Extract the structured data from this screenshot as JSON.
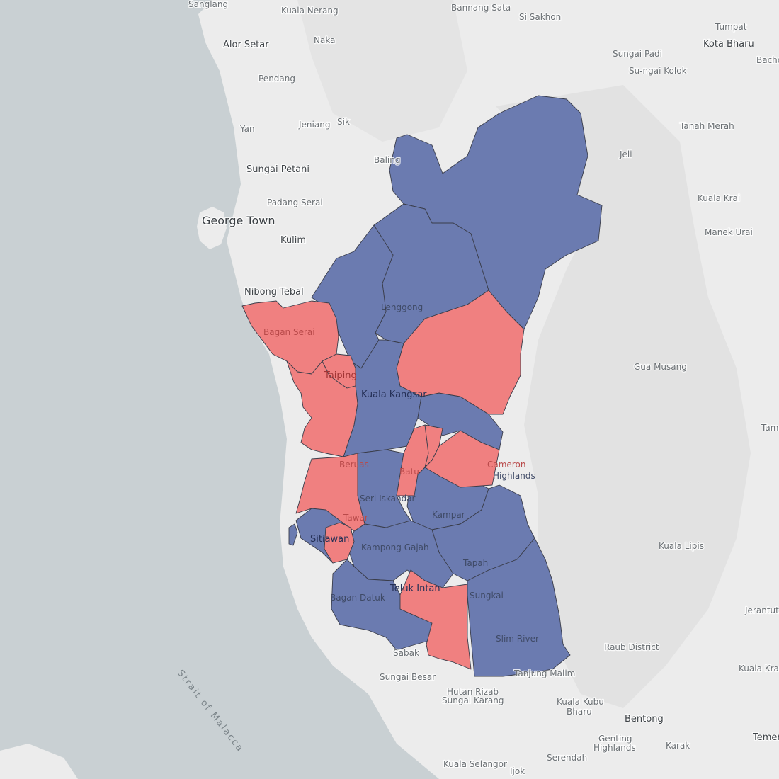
{
  "map": {
    "colors": {
      "sea": "#c9d0d3",
      "land": "#ececec",
      "terrain": "#dcdcdc",
      "blue": "#6b7bb0",
      "red": "#f08080",
      "border": "#3a3d4a"
    },
    "sea_label": "Strait of Malacca",
    "place_labels": {
      "sanglang": "Sanglang",
      "kuala_nerang": "Kuala Nerang",
      "bannang_sata": "Bannang Sata",
      "si_sakhon": "Si Sakhon",
      "tumpat": "Tumpat",
      "kota_bharu": "Kota Bharu",
      "bacho": "Bacho",
      "alor_setar": "Alor Setar",
      "naka": "Naka",
      "sungai_padi": "Sungai Padi",
      "su_ngai_kolok": "Su-ngai Kolok",
      "pendang": "Pendang",
      "yan": "Yan",
      "jeniang": "Jeniang",
      "sik": "Sik",
      "tanah_merah": "Tanah Merah",
      "jeli": "Jeli",
      "sungai_petani": "Sungai Petani",
      "baling": "Baling",
      "padang_serai": "Padang Serai",
      "kuala_krai": "Kuala Krai",
      "george_town": "George Town",
      "kulim": "Kulim",
      "manek_urai": "Manek Urai",
      "nibong_tebal": "Nibong Tebal",
      "gua_musang": "Gua Musang",
      "kuala_lipis": "Kuala Lipis",
      "tama": "Tama",
      "jerantut": "Jerantut",
      "raub_district": "Raub District",
      "kuala_kraur": "Kuala Kraur",
      "bentong": "Bentong",
      "temer": "Temer",
      "karak": "Karak",
      "genting": "Genting",
      "highlands_south": "Highlands",
      "kuala_kubu": "Kuala Kubu",
      "bharu": "Bharu",
      "sabak": "Sabak",
      "sungai_besar": "Sungai Besar",
      "hutan_rizab": "Hutan Rizab",
      "sungai_karang": "Sungai Karang",
      "serendah": "Serendah",
      "kuala_selangor": "Kuala Selangor",
      "ijok": "Ijok"
    },
    "district_labels": {
      "lenggong": "Lenggong",
      "bagan_serai": "Bagan Serai",
      "taiping": "Taiping",
      "kuala_kangsar": "Kuala Kangsar",
      "beruas": "Beruas",
      "batu_gajah": "Batu",
      "cameron": "Cameron",
      "highlands": "Highlands",
      "seri_iskandar": "Seri Iskandar",
      "kampar": "Kampar",
      "sitiawan": "Sitiawan",
      "pantai_remis": "Tawar",
      "kampong_gajah": "Kampong Gajah",
      "tapah": "Tapah",
      "teluk_intan": "Teluk Intan",
      "bagan_datuk": "Bagan Datuk",
      "sungkai": "Sungkai",
      "slim_river": "Slim River",
      "tanjung_malim": "Tanjung Malim"
    }
  }
}
